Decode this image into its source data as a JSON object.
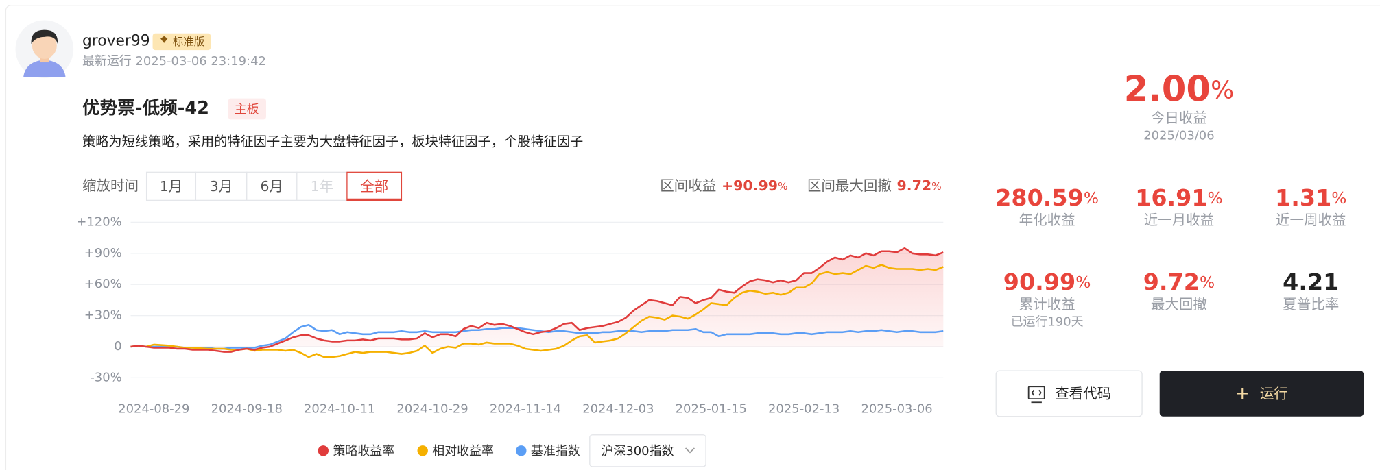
{
  "user": {
    "name": "grover99",
    "badge": "标准版",
    "last_run": "最新运行 2025-03-06 23:19:42"
  },
  "strategy": {
    "title": "优势票-低频-42",
    "tag": "主板",
    "description": "策略为短线策略，采用的特征因子主要为大盘特征因子，板块特征因子，个股特征因子"
  },
  "zoom": {
    "label": "缩放时间",
    "options": [
      "1月",
      "3月",
      "6月",
      "1年",
      "全部"
    ]
  },
  "range_stats": {
    "return_label": "区间收益",
    "return": "+90.99",
    "return_unit": "%",
    "drawdown_label": "区间最大回撤",
    "drawdown": "9.72",
    "drawdown_unit": "%"
  },
  "chart_data": {
    "type": "line",
    "categories": [
      null,
      null,
      null,
      "2024-08-29",
      null,
      null,
      null,
      null,
      null,
      null,
      null,
      null,
      null,
      null,
      null,
      "2024-09-18",
      null,
      null,
      null,
      null,
      null,
      null,
      null,
      null,
      null,
      null,
      null,
      "2024-10-11",
      null,
      null,
      null,
      null,
      null,
      null,
      null,
      null,
      null,
      null,
      null,
      "2024-10-29",
      null,
      null,
      null,
      null,
      null,
      null,
      null,
      null,
      null,
      null,
      null,
      "2024-11-14",
      null,
      null,
      null,
      null,
      null,
      null,
      null,
      null,
      null,
      null,
      null,
      "2024-12-03",
      null,
      null,
      null,
      null,
      null,
      null,
      null,
      null,
      null,
      null,
      null,
      "2025-01-15",
      null,
      null,
      null,
      null,
      null,
      null,
      null,
      null,
      null,
      null,
      null,
      "2025-02-13",
      null,
      null,
      null,
      null,
      null,
      null,
      null,
      null,
      null,
      null,
      null,
      "2025-03-06",
      null,
      null,
      null,
      null,
      null,
      null
    ],
    "series": [
      {
        "name": "策略收益率",
        "color": "#e03c3c",
        "values": [
          0,
          1,
          0,
          -1,
          -1,
          -1,
          -2,
          -2,
          -3,
          -3,
          -3,
          -4,
          -5,
          -5,
          -3,
          -2,
          -3,
          -1,
          0,
          3,
          6,
          9,
          11,
          11,
          8,
          6,
          5,
          5,
          6,
          6,
          7,
          6,
          8,
          8,
          8,
          7,
          7,
          8,
          13,
          9,
          12,
          12,
          10,
          17,
          20,
          18,
          23,
          21,
          22,
          20,
          17,
          14,
          12,
          14,
          15,
          18,
          22,
          23,
          16,
          18,
          19,
          20,
          22,
          24,
          28,
          35,
          40,
          45,
          44,
          42,
          40,
          48,
          47,
          42,
          45,
          47,
          55,
          53,
          52,
          58,
          63,
          65,
          64,
          62,
          64,
          62,
          64,
          71,
          71,
          76,
          82,
          86,
          84,
          88,
          86,
          90,
          88,
          92,
          92,
          91,
          95,
          90,
          89,
          89,
          88,
          91
        ]
      },
      {
        "name": "相对收益率",
        "color": "#f5b000",
        "values": [
          0,
          1,
          0,
          2,
          1.5,
          1,
          0,
          -1,
          -1,
          -1.5,
          -2,
          -2,
          -2,
          -3,
          -3,
          -2,
          -4,
          -3,
          -3,
          -3,
          -4,
          -3,
          -6,
          -10,
          -7,
          -10,
          -10,
          -9,
          -7,
          -5,
          -6,
          -5,
          -5,
          -5,
          -6,
          -7,
          -6,
          -4,
          1,
          -6,
          -2,
          0,
          -1,
          3,
          3,
          2,
          4,
          3,
          3,
          3,
          1,
          -2,
          -3,
          -4,
          -3,
          -2,
          1,
          6,
          10,
          11,
          4,
          5,
          6,
          8,
          13,
          19,
          25,
          29,
          28,
          26,
          30,
          29,
          27,
          31,
          36,
          42,
          41,
          40,
          47,
          52,
          54,
          53,
          51,
          52,
          50,
          52,
          57,
          57,
          61,
          70,
          72,
          70,
          71,
          70,
          74,
          78,
          76,
          79,
          76,
          75,
          75,
          75,
          74,
          75,
          74,
          77
        ]
      },
      {
        "name": "基准指数",
        "color": "#5b9ef5",
        "values": [
          0,
          1,
          0,
          0,
          0,
          0,
          0,
          -1,
          -1,
          -1,
          -1,
          -2,
          -2,
          -1,
          -1,
          -1,
          -1,
          1,
          2,
          5,
          8,
          14,
          19,
          21,
          16,
          15,
          16,
          12,
          14,
          13,
          12,
          12,
          14,
          14,
          14,
          15,
          14,
          14,
          15,
          14,
          14,
          14,
          14,
          15,
          16,
          16,
          17,
          17,
          18,
          18,
          18,
          17,
          16,
          15,
          14,
          15,
          15,
          14,
          13,
          13,
          13,
          14,
          14,
          15,
          15,
          15,
          14,
          15,
          15,
          15,
          16,
          16,
          16,
          17,
          14,
          14,
          10,
          12,
          12,
          12,
          12,
          13,
          13,
          13,
          12,
          12,
          13,
          13,
          12,
          13,
          14,
          14,
          14,
          15,
          14,
          15,
          15,
          16,
          15,
          14,
          15,
          15,
          14,
          14,
          14,
          15
        ]
      }
    ],
    "ylim": [
      -30,
      120
    ],
    "yticks": [
      {
        "value": -30,
        "label": "-30%"
      },
      0,
      {
        "value": 30,
        "label": "+30%"
      },
      {
        "value": 60,
        "label": "+60%"
      },
      {
        "value": 90,
        "label": "+90%"
      },
      {
        "value": 120,
        "label": "+120%"
      }
    ],
    "grid": true,
    "fill_first_series": true
  },
  "benchmark_select": "沪深300指数",
  "summary": {
    "today": {
      "value": "2.00",
      "unit": "%",
      "label": "今日收益",
      "date": "2025/03/06"
    },
    "metrics": [
      {
        "value": "280.59",
        "unit": "%",
        "label": "年化收益"
      },
      {
        "value": "16.91",
        "unit": "%",
        "label": "近一月收益"
      },
      {
        "value": "1.31",
        "unit": "%",
        "label": "近一周收益"
      },
      {
        "value": "90.99",
        "unit": "%",
        "label": "累计收益",
        "sub": "已运行190天"
      },
      {
        "value": "9.72",
        "unit": "%",
        "label": "最大回撤"
      },
      {
        "value": "4.21",
        "label": "夏普比率"
      }
    ]
  },
  "buttons": {
    "view_code": "查看代码",
    "run": "运行"
  }
}
